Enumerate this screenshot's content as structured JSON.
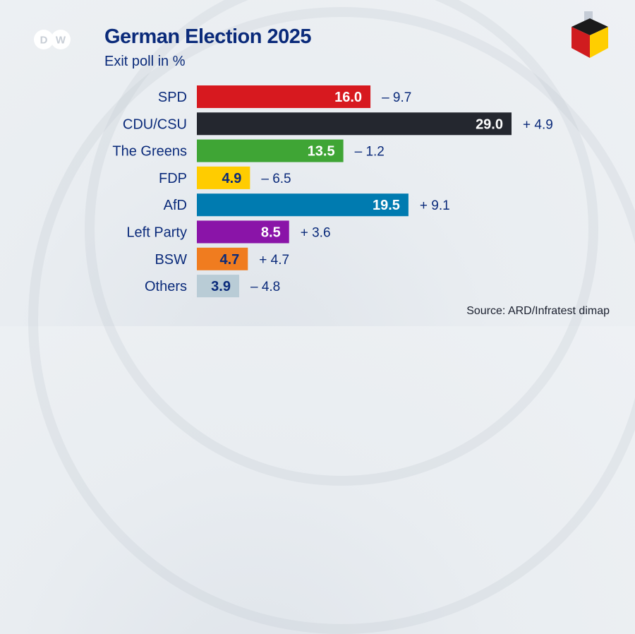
{
  "header": {
    "logo": "DW",
    "title": "German Election 2025",
    "subtitle": "Exit poll in %"
  },
  "icons": {
    "brand": "dw-logo",
    "ballot": "ballot-box-icon"
  },
  "chart_data": {
    "type": "bar",
    "orientation": "horizontal",
    "title": "German Election 2025",
    "subtitle": "Exit poll in %",
    "categories": [
      "SPD",
      "CDU/CSU",
      "The Greens",
      "FDP",
      "AfD",
      "Left Party",
      "BSW",
      "Others"
    ],
    "values": [
      16.0,
      29.0,
      13.5,
      4.9,
      19.5,
      8.5,
      4.7,
      3.9
    ],
    "value_labels": [
      "16.0",
      "29.0",
      "13.5",
      "4.9",
      "19.5",
      "8.5",
      "4.7",
      "3.9"
    ],
    "changes": [
      "– 9.7",
      "+ 4.9",
      "– 1.2",
      "– 6.5",
      "+ 9.1",
      "+ 3.6",
      "+ 4.7",
      "– 4.8"
    ],
    "colors": [
      "#d7191f",
      "#24272f",
      "#3fa535",
      "#ffcc00",
      "#007bb0",
      "#8a14a8",
      "#f07c1f",
      "#b9ccd6"
    ],
    "label_colors": [
      "#ffffff",
      "#ffffff",
      "#ffffff",
      "#0a2a7a",
      "#ffffff",
      "#ffffff",
      "#0a2a7a",
      "#0a2a7a"
    ],
    "xlim": [
      0,
      29
    ],
    "grid": false,
    "legend": "none",
    "source": "Source: ARD/Infratest dimap"
  }
}
